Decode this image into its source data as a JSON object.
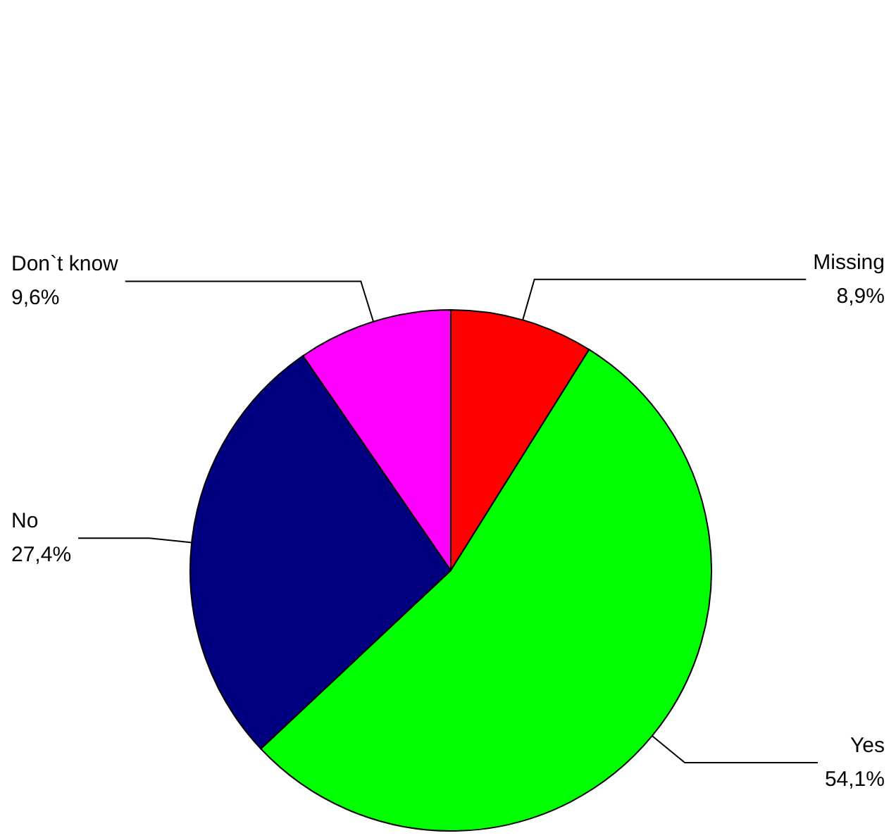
{
  "chart_data": {
    "type": "pie",
    "categories": [
      "Missing",
      "Yes",
      "No",
      "Don`t know"
    ],
    "values": [
      8.9,
      54.1,
      27.4,
      9.6
    ],
    "colors": [
      "#ff0000",
      "#00ff00",
      "#000080",
      "#ff00ff"
    ],
    "value_labels": [
      "8,9%",
      "54,1%",
      "27,4%",
      "9,6%"
    ],
    "legend": false
  }
}
